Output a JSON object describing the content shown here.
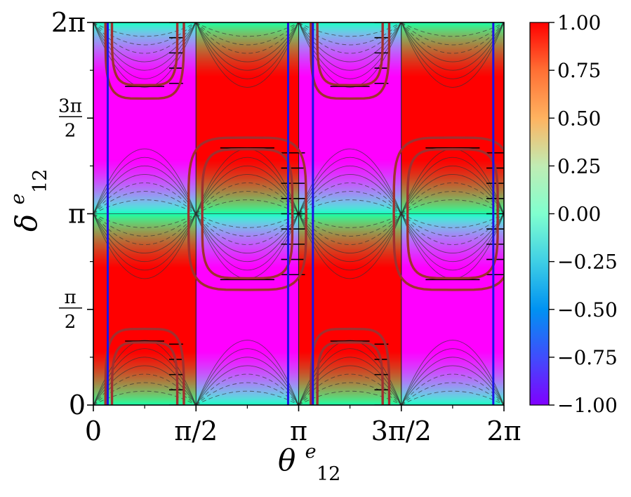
{
  "chart_data": {
    "type": "heatmap",
    "title": "",
    "xlabel": {
      "symbol": "θ",
      "sup": "e",
      "sub": "12"
    },
    "ylabel": {
      "symbol": "δ",
      "sup": "e",
      "sub": "12"
    },
    "xlim": [
      0,
      6.2832
    ],
    "ylim": [
      0,
      6.2832
    ],
    "x_ticks": [
      {
        "value": 0,
        "label": "0"
      },
      {
        "value": 1.5708,
        "label": "π/2"
      },
      {
        "value": 3.1416,
        "label": "π"
      },
      {
        "value": 4.7124,
        "label": "3π/2"
      },
      {
        "value": 6.2832,
        "label": "2π"
      }
    ],
    "y_ticks": [
      {
        "value": 0,
        "label": "0"
      },
      {
        "value": 1.5708,
        "label": "π/2",
        "frac": {
          "num": "π",
          "den": "2"
        }
      },
      {
        "value": 3.1416,
        "label": "π"
      },
      {
        "value": 4.7124,
        "label": "3π/2",
        "frac": {
          "num": "3π",
          "den": "2"
        }
      },
      {
        "value": 6.2832,
        "label": "2π"
      }
    ],
    "colormap": "rainbow",
    "colorbar": {
      "min": -1.0,
      "max": 1.0,
      "ticks": [
        "1.00",
        "0.75",
        "0.50",
        "0.25",
        "0.00",
        "−0.25",
        "−0.50",
        "−0.75",
        "−1.00"
      ]
    },
    "field_hot_spots_theta": [
      0.785,
      3.927
    ],
    "field_cold_spots_theta": [
      2.356,
      5.498
    ],
    "vertical_lines": {
      "color": "#1a14e6",
      "theta": [
        0.22,
        2.98,
        3.36,
        6.12
      ]
    },
    "contour_levels": [
      -0.75,
      -0.5,
      -0.25,
      0,
      0.25,
      0.5,
      0.75
    ],
    "boundary_lines_theta": [
      0,
      1.5708,
      3.1416,
      4.7124,
      6.2832
    ],
    "regions": [
      {
        "center": [
          2.356,
          3.1416
        ],
        "outer": [
          0.9,
          1.25
        ],
        "inner": [
          0.69,
          1.06
        ],
        "color": "#a0302f"
      },
      {
        "center": [
          5.498,
          3.1416
        ],
        "outer": [
          0.9,
          1.25
        ],
        "inner": [
          0.69,
          1.06
        ],
        "color": "#a0302f"
      },
      {
        "center": [
          0.785,
          0.0
        ],
        "outer": [
          0.6,
          1.25
        ],
        "inner": [
          0.5,
          1.03
        ],
        "color": "#a0302f"
      },
      {
        "center": [
          3.927,
          0.0
        ],
        "outer": [
          0.6,
          1.25
        ],
        "inner": [
          0.5,
          1.03
        ],
        "color": "#a0302f"
      },
      {
        "center": [
          0.785,
          6.2832
        ],
        "outer": [
          0.6,
          1.25
        ],
        "inner": [
          0.5,
          1.03
        ],
        "color": "#a0302f"
      },
      {
        "center": [
          3.927,
          6.2832
        ],
        "outer": [
          0.6,
          1.25
        ],
        "inner": [
          0.5,
          1.03
        ],
        "color": "#a0302f"
      }
    ],
    "hatch_color": "#000000"
  }
}
